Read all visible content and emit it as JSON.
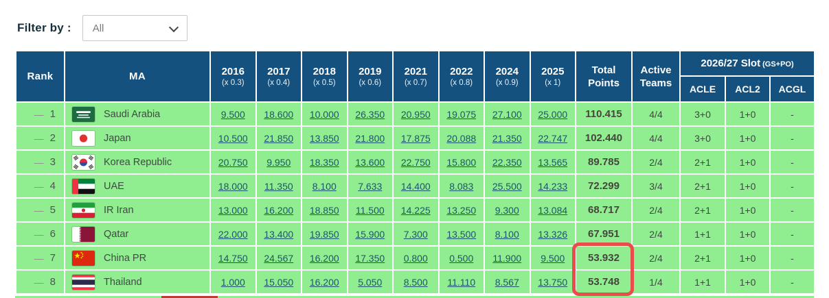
{
  "filter": {
    "label": "Filter by :",
    "selected_option": "All",
    "options": [
      "All"
    ]
  },
  "table": {
    "header": {
      "rank": "Rank",
      "ma": "MA",
      "years": [
        {
          "year": "2016",
          "multiplier": "(x 0.3)"
        },
        {
          "year": "2017",
          "multiplier": "(x 0.4)"
        },
        {
          "year": "2018",
          "multiplier": "(x 0.5)"
        },
        {
          "year": "2019",
          "multiplier": "(x 0.6)"
        },
        {
          "year": "2021",
          "multiplier": "(x 0.7)"
        },
        {
          "year": "2022",
          "multiplier": "(x 0.8)"
        },
        {
          "year": "2024",
          "multiplier": "(x 0.9)"
        },
        {
          "year": "2025",
          "multiplier": "(x 1)"
        }
      ],
      "total_points": "Total Points",
      "active_teams": "Active Teams",
      "slot_title": "2026/27 Slot",
      "slot_subtitle": "(GS+PO)",
      "slot_columns": [
        "ACLE",
        "ACL2",
        "ACGL"
      ]
    },
    "rows": [
      {
        "trend": "—",
        "rank": "1",
        "country": "Saudi Arabia",
        "flag": "sa",
        "values": [
          "9.500",
          "18.600",
          "10.000",
          "26.350",
          "20.950",
          "19.075",
          "27.100",
          "25.000"
        ],
        "total": "110.415",
        "active_teams": "4/4",
        "slots": [
          "3+0",
          "1+0",
          "-"
        ]
      },
      {
        "trend": "—",
        "rank": "2",
        "country": "Japan",
        "flag": "jp",
        "values": [
          "10.500",
          "21.850",
          "13.850",
          "21.800",
          "17.875",
          "20.088",
          "21.350",
          "22.747"
        ],
        "total": "102.440",
        "active_teams": "4/4",
        "slots": [
          "3+0",
          "1+0",
          "-"
        ]
      },
      {
        "trend": "—",
        "rank": "3",
        "country": "Korea Republic",
        "flag": "kr",
        "values": [
          "20.750",
          "9.950",
          "18.350",
          "13.600",
          "22.750",
          "15.800",
          "22.350",
          "13.565"
        ],
        "total": "89.785",
        "active_teams": "2/4",
        "slots": [
          "2+1",
          "1+0",
          "-"
        ]
      },
      {
        "trend": "—",
        "rank": "4",
        "country": "UAE",
        "flag": "ae",
        "values": [
          "18.000",
          "11.350",
          "8.100",
          "7.633",
          "14.400",
          "8.083",
          "25.500",
          "14.233"
        ],
        "total": "72.299",
        "active_teams": "3/4",
        "slots": [
          "2+1",
          "1+0",
          "-"
        ]
      },
      {
        "trend": "—",
        "rank": "5",
        "country": "IR Iran",
        "flag": "ir",
        "values": [
          "13.000",
          "16.200",
          "18.850",
          "11.500",
          "14.225",
          "13.250",
          "9.300",
          "13.084"
        ],
        "total": "68.717",
        "active_teams": "2/4",
        "slots": [
          "2+1",
          "1+0",
          "-"
        ]
      },
      {
        "trend": "—",
        "rank": "6",
        "country": "Qatar",
        "flag": "qa",
        "values": [
          "22.000",
          "13.400",
          "19.850",
          "15.900",
          "7.300",
          "13.500",
          "8.100",
          "13.326"
        ],
        "total": "67.951",
        "active_teams": "2/4",
        "slots": [
          "1+1",
          "1+0",
          "-"
        ]
      },
      {
        "trend": "—",
        "rank": "7",
        "country": "China PR",
        "flag": "cn",
        "values": [
          "14.750",
          "24.567",
          "16.200",
          "17.350",
          "0.800",
          "0.500",
          "11.900",
          "9.500"
        ],
        "total": "53.932",
        "active_teams": "2/4",
        "slots": [
          "2+1",
          "1+0",
          "-"
        ]
      },
      {
        "trend": "—",
        "rank": "8",
        "country": "Thailand",
        "flag": "th",
        "values": [
          "1.000",
          "15.050",
          "16.200",
          "5.050",
          "8.500",
          "11.110",
          "8.567",
          "13.750"
        ],
        "total": "53.748",
        "active_teams": "1/4",
        "slots": [
          "1+1",
          "1+0",
          "-"
        ]
      }
    ],
    "highlight": {
      "column": "Total Points",
      "row_countries": [
        "China PR",
        "Thailand"
      ],
      "color": "#ea4c4c"
    }
  },
  "colors": {
    "header_bg": "#15517e",
    "row_bg": "#90ee90",
    "link": "#1d5468",
    "highlight": "#ea4c4c"
  }
}
